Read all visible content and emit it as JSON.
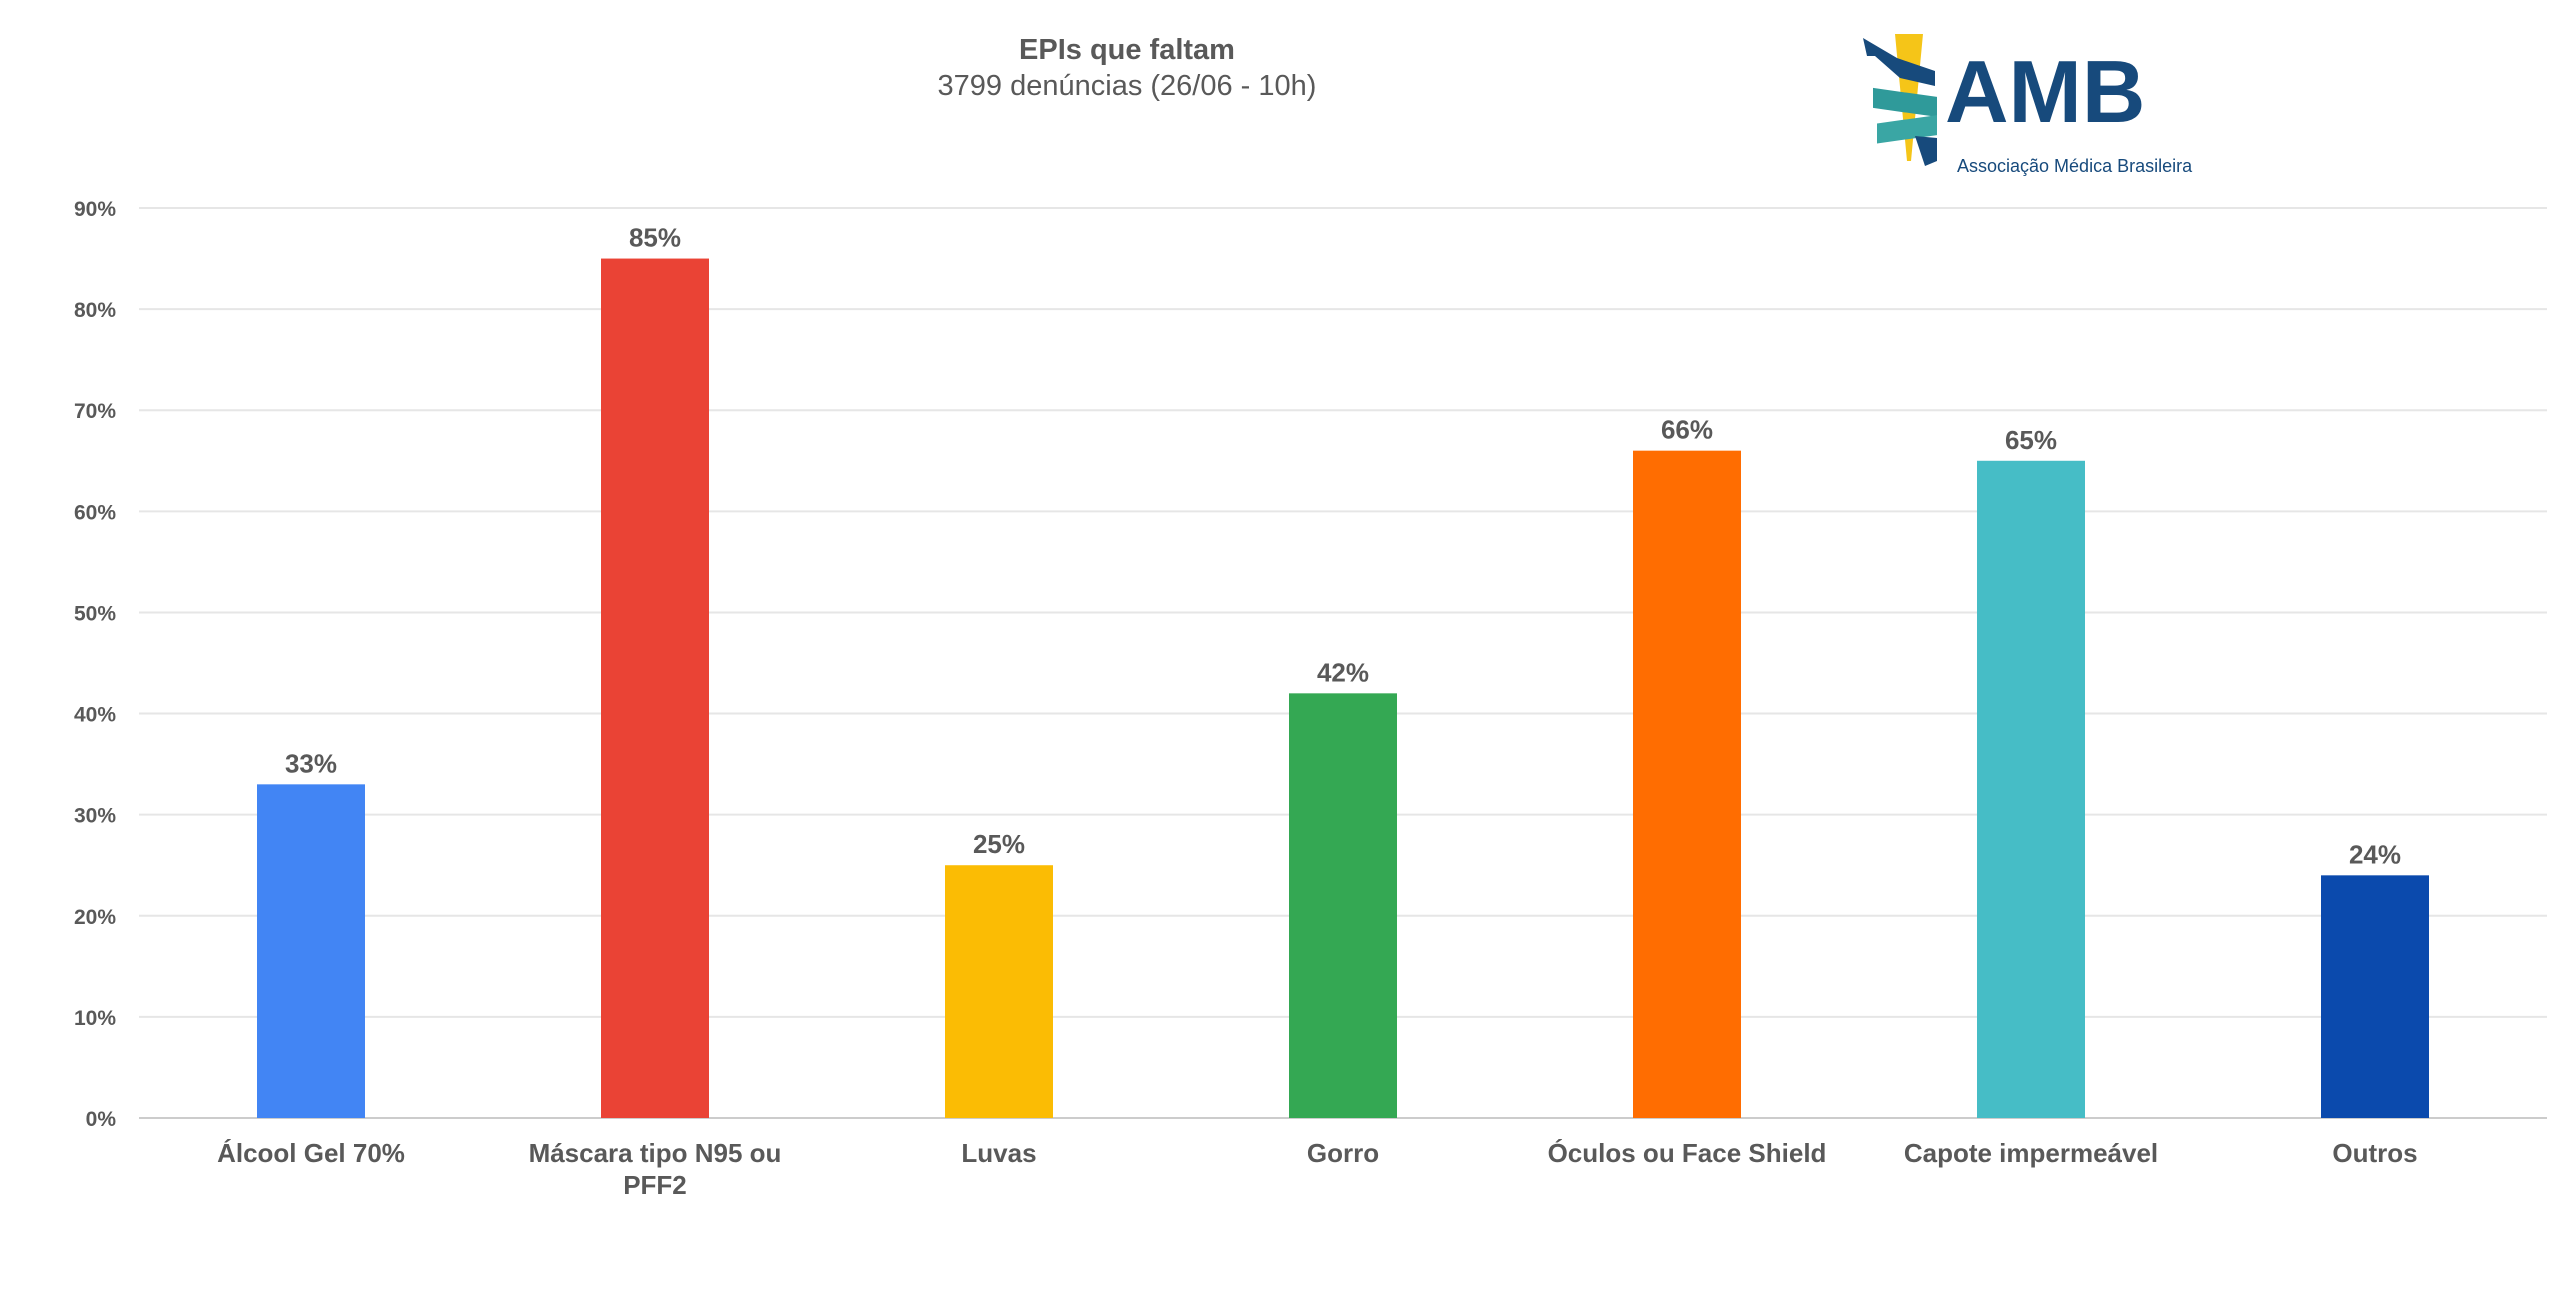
{
  "chart_data": {
    "type": "bar",
    "title": "EPIs que faltam",
    "subtitle": "3799 denúncias (26/06 - 10h)",
    "categories": [
      "Álcool Gel 70%",
      "Máscara tipo N95 ou PFF2",
      "Luvas",
      "Gorro",
      "Óculos ou Face Shield",
      "Capote impermeável",
      "Outros"
    ],
    "values": [
      33,
      85,
      25,
      42,
      66,
      65,
      24
    ],
    "value_labels": [
      "33%",
      "85%",
      "25%",
      "42%",
      "66%",
      "65%",
      "24%"
    ],
    "colors": [
      "#4285f4",
      "#ea4335",
      "#fbbc04",
      "#34a853",
      "#ff6d01",
      "#46bdc6",
      "#0b4aad"
    ],
    "yticks": [
      "0%",
      "10%",
      "20%",
      "30%",
      "40%",
      "50%",
      "60%",
      "70%",
      "80%",
      "90%"
    ],
    "ylim": [
      0,
      90
    ],
    "xlabel": "",
    "ylabel": "",
    "grid": true,
    "legend": "none"
  },
  "logo": {
    "name": "AMB",
    "tagline": "Associação Médica Brasileira"
  }
}
